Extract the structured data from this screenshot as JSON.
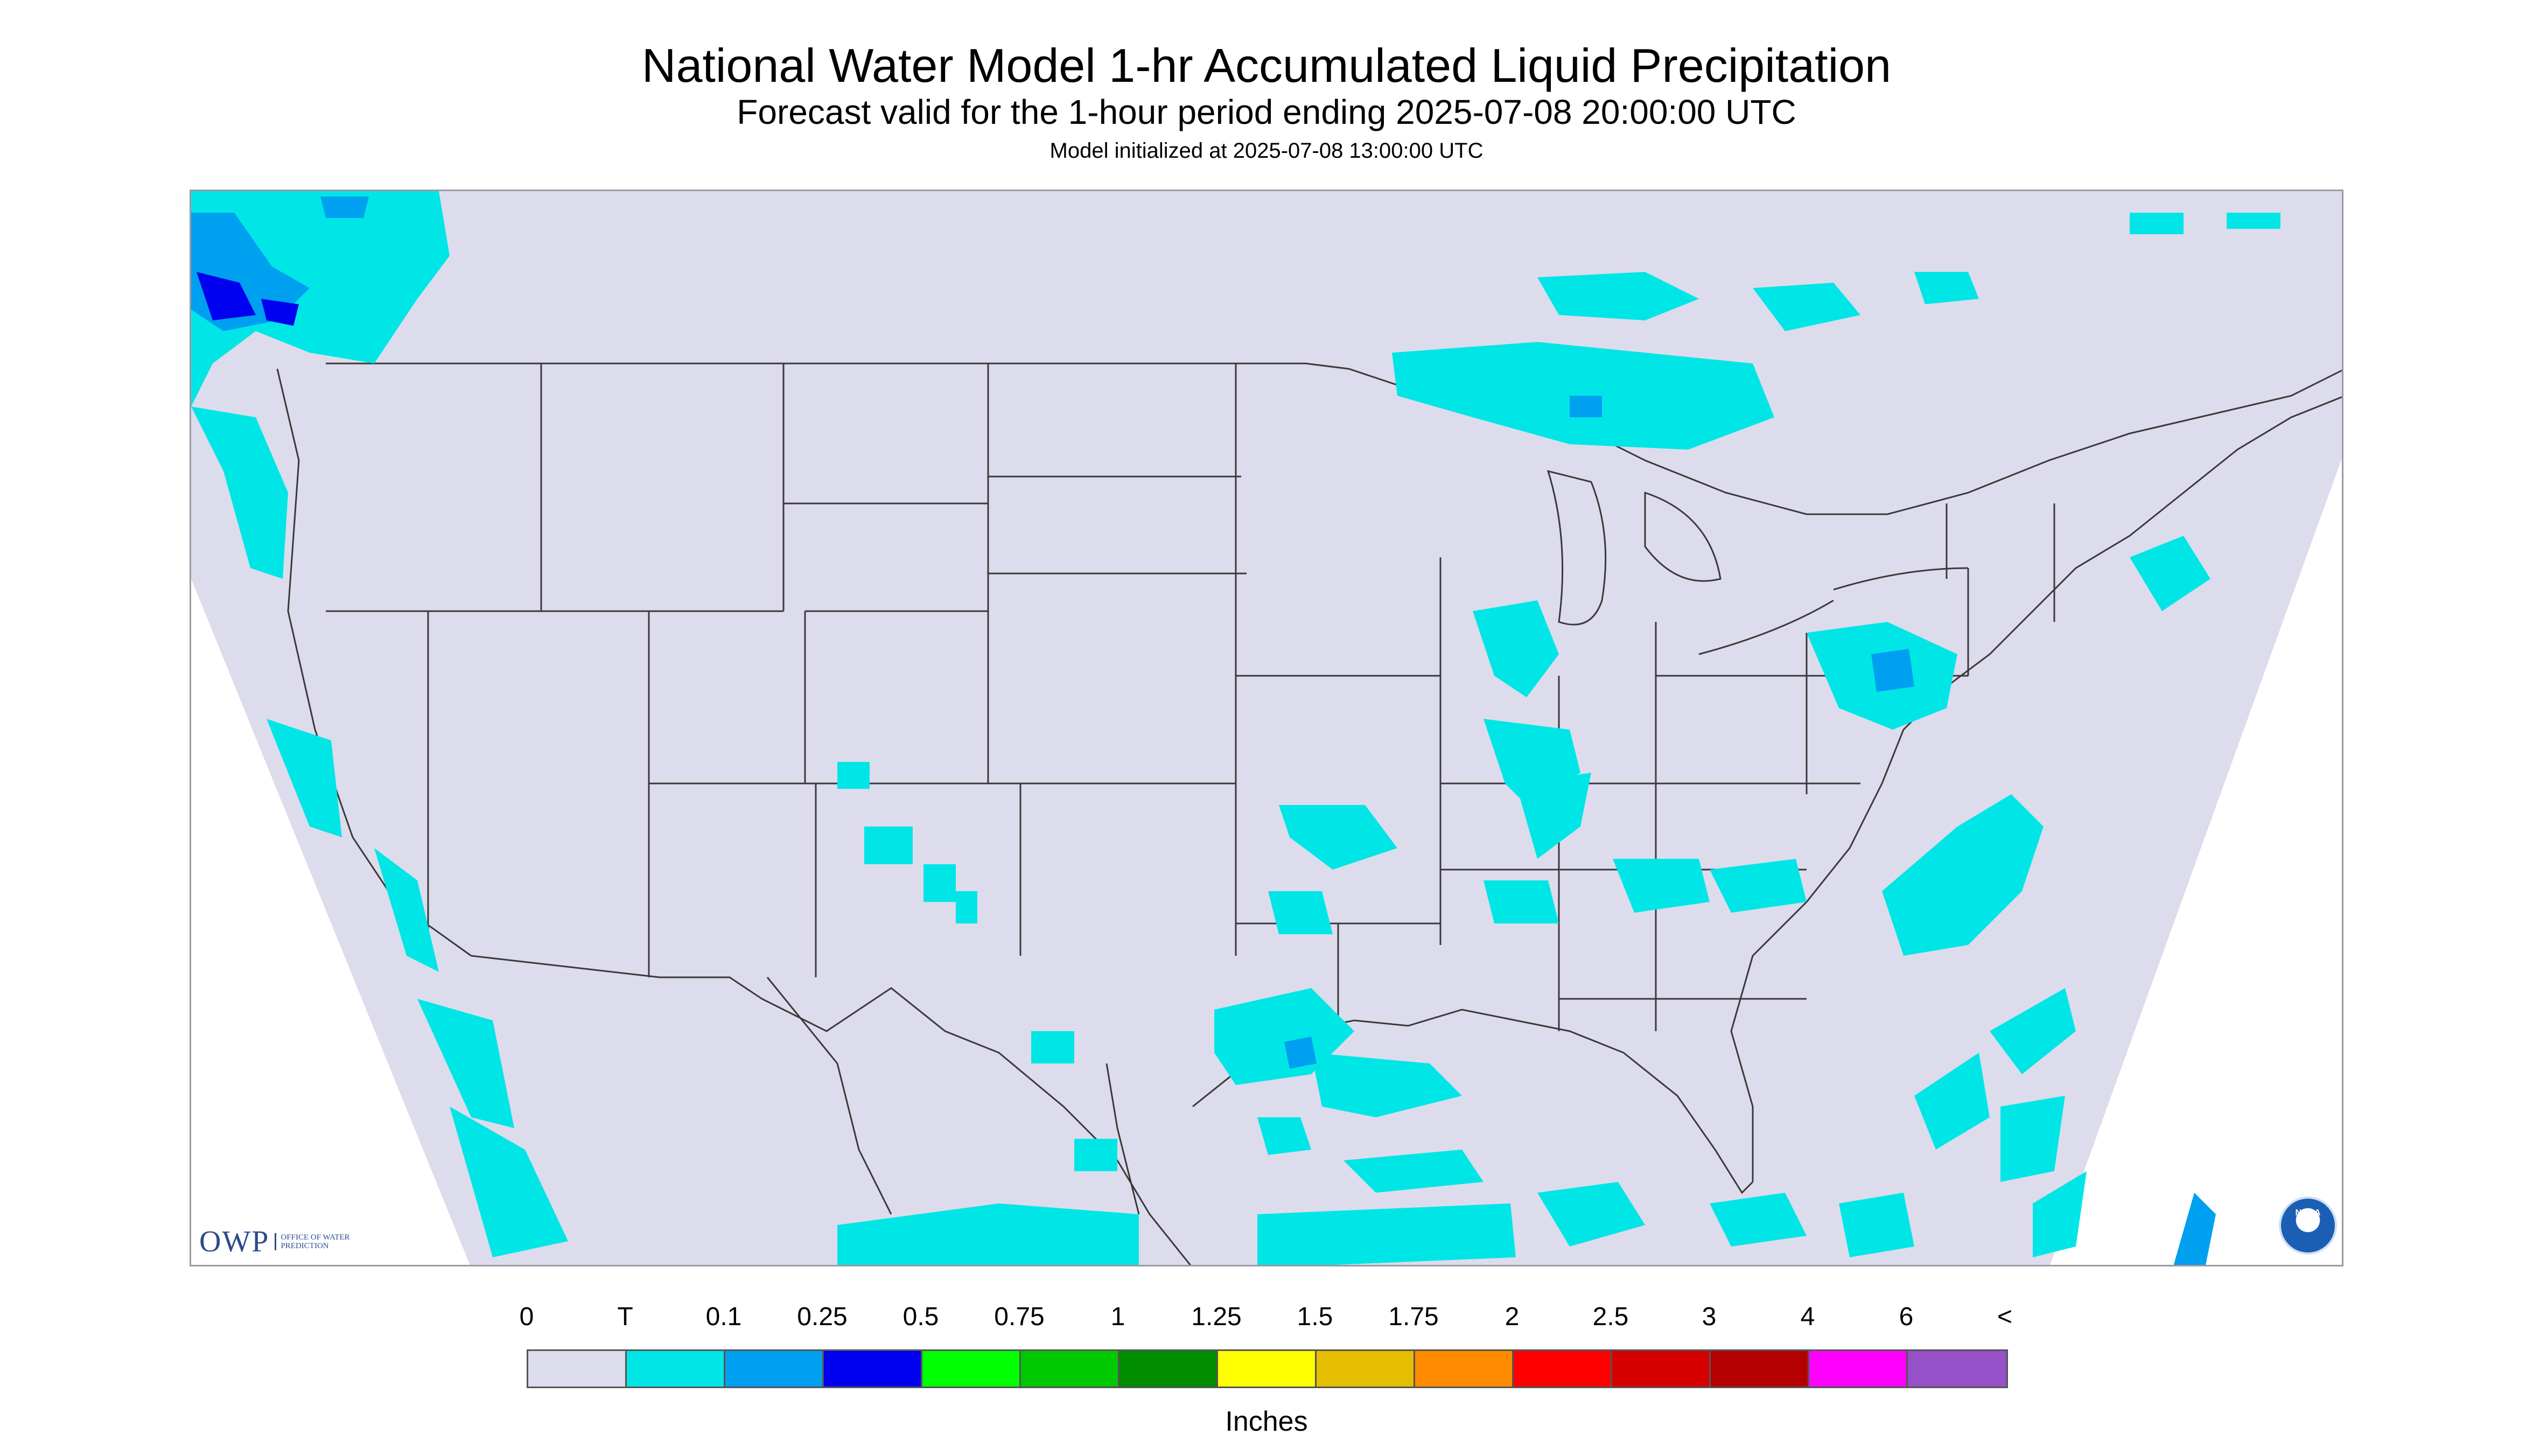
{
  "header": {
    "title": "National Water Model 1-hr Accumulated Liquid Precipitation",
    "subtitle": "Forecast valid for the 1-hour period ending 2025-07-08 20:00:00 UTC",
    "init": "Model initialized at 2025-07-08 13:00:00 UTC"
  },
  "logos": {
    "owp_text": "OWP",
    "owp_sub": "OFFICE OF WATER PREDICTION",
    "noaa_text": "NOAA"
  },
  "legend": {
    "labels": [
      "0",
      "T",
      "0.1",
      "0.25",
      "0.5",
      "0.75",
      "1",
      "1.25",
      "1.5",
      "1.75",
      "2",
      "2.5",
      "3",
      "4",
      "6",
      "<"
    ],
    "colors": [
      "#dcdcec",
      "#00e6e6",
      "#00a0f0",
      "#0000f0",
      "#00ff00",
      "#00c800",
      "#008c00",
      "#ffff00",
      "#e6be00",
      "#ff8c00",
      "#ff0000",
      "#d70000",
      "#b40000",
      "#ff00ff",
      "#9650c8"
    ],
    "units": "Inches"
  },
  "map": {
    "background_color": "#dcdcec",
    "light_precip_color": "#00e6e6",
    "moderate_precip_color": "#00a0f0",
    "heavy_precip_color": "#0000f0",
    "boundary_color": "#3a3a3a"
  }
}
